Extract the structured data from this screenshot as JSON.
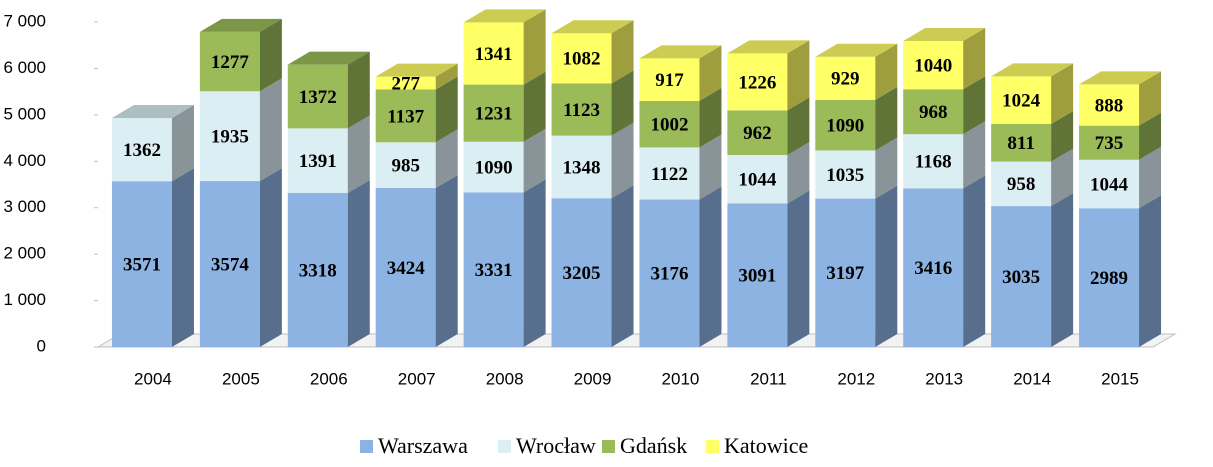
{
  "chart_data": {
    "type": "bar3d_stacked",
    "categories": [
      "2004",
      "2005",
      "2006",
      "2007",
      "2008",
      "2009",
      "2010",
      "2011",
      "2012",
      "2013",
      "2014",
      "2015"
    ],
    "series": [
      {
        "name": "Warszawa",
        "color": "#8db3e2",
        "values": [
          3571,
          3574,
          3318,
          3424,
          3331,
          3205,
          3176,
          3091,
          3197,
          3416,
          3035,
          2989
        ]
      },
      {
        "name": "Wrocław",
        "color": "#dbeef4",
        "values": [
          1362,
          1935,
          1391,
          985,
          1090,
          1348,
          1122,
          1044,
          1035,
          1168,
          958,
          1044
        ]
      },
      {
        "name": "Gdańsk",
        "color": "#9bbb59",
        "values": [
          null,
          1277,
          1372,
          1137,
          1231,
          1123,
          1002,
          962,
          1090,
          968,
          811,
          735
        ]
      },
      {
        "name": "Katowice",
        "color": "#ffff66",
        "values": [
          null,
          null,
          null,
          277,
          1341,
          1082,
          917,
          1226,
          929,
          1040,
          1024,
          888
        ]
      }
    ],
    "ylim": [
      0,
      7000
    ],
    "yticks": [
      0,
      {
        "value": 1000,
        "label": "1 000"
      },
      {
        "value": 2000,
        "label": "2 000"
      },
      {
        "value": 3000,
        "label": "3 000"
      },
      {
        "value": 4000,
        "label": "4 000"
      },
      {
        "value": 5000,
        "label": "5 000"
      },
      {
        "value": 6000,
        "label": "6 000"
      },
      {
        "value": 7000,
        "label": "7 000"
      }
    ],
    "legend": "bottom"
  }
}
